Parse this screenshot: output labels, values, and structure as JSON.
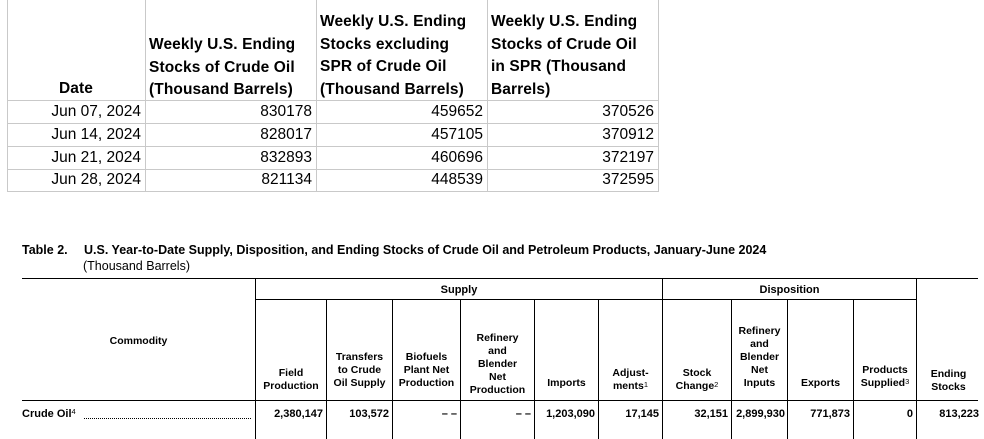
{
  "sheet": {
    "headers": {
      "date": "Date",
      "col1": [
        "Weekly U.S. Ending",
        "Stocks of Crude Oil",
        "(Thousand Barrels)"
      ],
      "col2": [
        "Weekly U.S. Ending",
        "Stocks excluding",
        "SPR of Crude Oil",
        "(Thousand Barrels)"
      ],
      "col3": [
        "Weekly U.S. Ending",
        "Stocks of Crude Oil",
        "in SPR  (Thousand",
        "Barrels)"
      ]
    },
    "rows": [
      {
        "date": "Jun 07, 2024",
        "total": "830178",
        "excl_spr": "459652",
        "spr": "370526"
      },
      {
        "date": "Jun 14, 2024",
        "total": "828017",
        "excl_spr": "457105",
        "spr": "370912"
      },
      {
        "date": "Jun 21, 2024",
        "total": "832893",
        "excl_spr": "460696",
        "spr": "372197"
      },
      {
        "date": "Jun 28, 2024",
        "total": "821134",
        "excl_spr": "448539",
        "spr": "372595"
      }
    ]
  },
  "table2": {
    "label": "Table 2.",
    "title": "U.S. Year-to-Date Supply, Disposition, and Ending Stocks of Crude Oil and Petroleum Products, January-June 2024",
    "subtitle": "(Thousand Barrels)",
    "group_supply": "Supply",
    "group_disposition": "Disposition",
    "col_commodity": "Commodity",
    "cols": {
      "field_production": [
        "Field",
        "Production"
      ],
      "transfers": [
        "Transfers",
        "to Crude",
        "Oil Supply"
      ],
      "biofuels": [
        "Biofuels",
        "Plant Net",
        "Production"
      ],
      "refinery_supply": [
        "Refinery",
        "and",
        "Blender",
        "Net",
        "Production"
      ],
      "imports": "Imports",
      "adjustments": [
        "Adjust-",
        "ments"
      ],
      "adjustments_note": "1",
      "stock_change": [
        "Stock",
        "Change"
      ],
      "stock_change_note": "2",
      "refinery_inputs": [
        "Refinery",
        "and",
        "Blender",
        "Net",
        "Inputs"
      ],
      "exports": "Exports",
      "products_supplied": [
        "Products",
        "Supplied"
      ],
      "products_supplied_note": "3",
      "ending_stocks": [
        "Ending",
        "Stocks"
      ]
    },
    "row": {
      "commodity": "Crude Oil",
      "commodity_note": "4",
      "field_production": "2,380,147",
      "transfers": "103,572",
      "biofuels": "– –",
      "refinery_supply": "– –",
      "imports": "1,203,090",
      "adjustments": "17,145",
      "stock_change": "32,151",
      "refinery_inputs": "2,899,930",
      "exports": "771,873",
      "products_supplied": "0",
      "ending_stocks": "813,223"
    }
  }
}
